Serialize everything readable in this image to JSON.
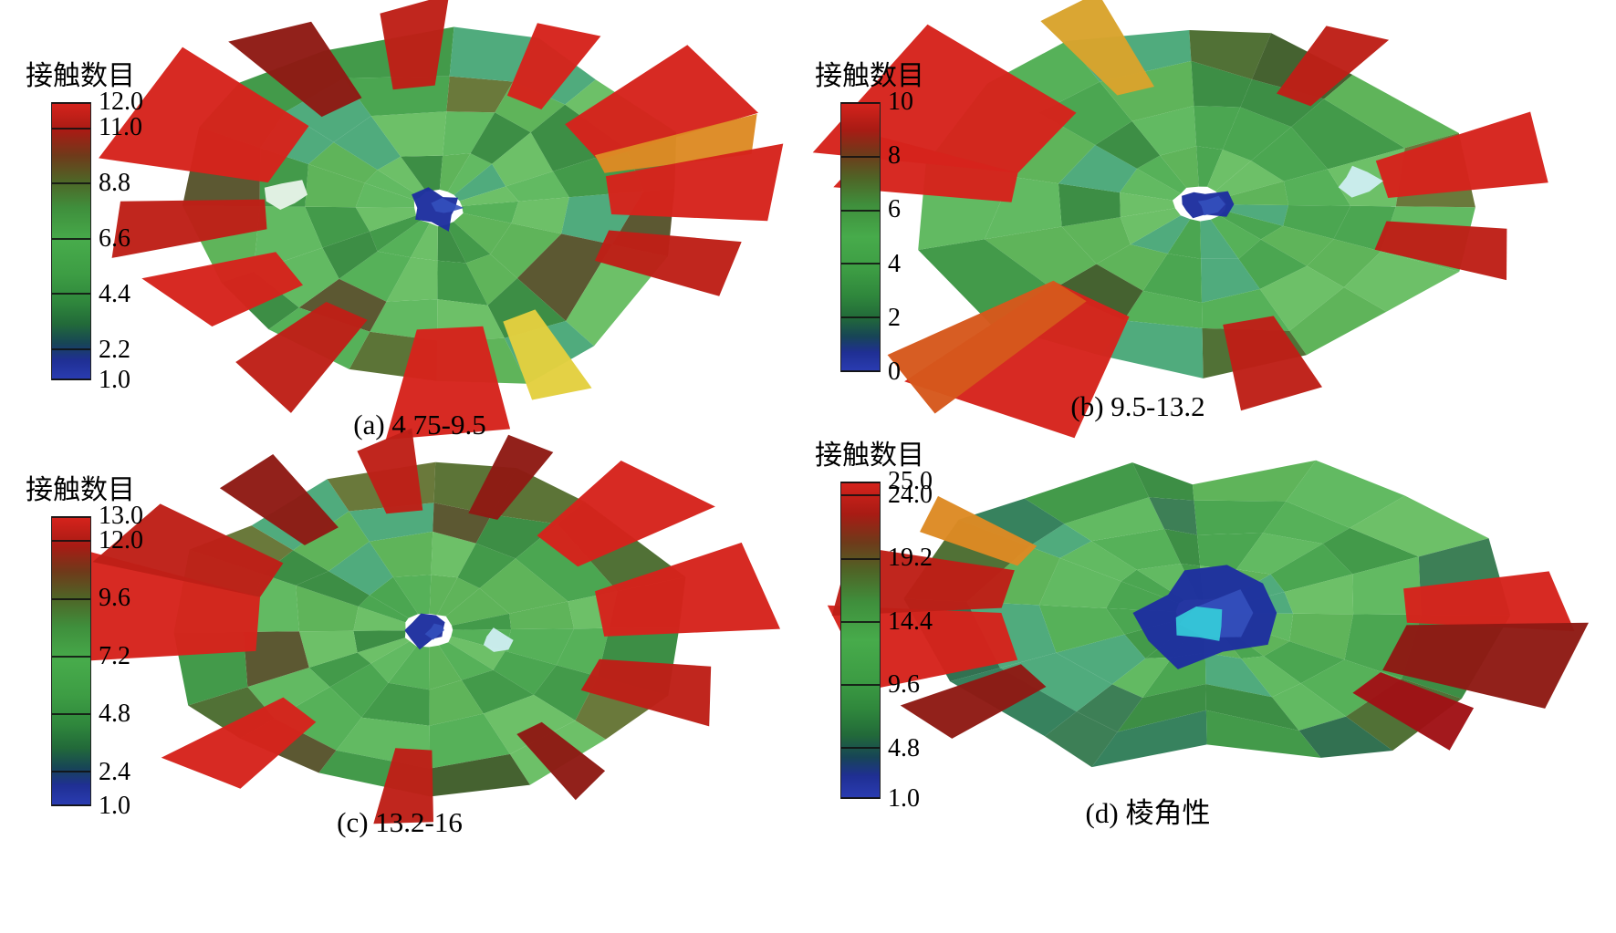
{
  "figure": {
    "background": "#ffffff"
  },
  "colormap": {
    "high_color": "#d6231c",
    "mid_color": "#47ab4b",
    "low_color": "#2a3cb2",
    "gradient_stops": [
      [
        "#d6231c",
        0
      ],
      [
        "#a81b14",
        10
      ],
      [
        "#6f3a1a",
        19
      ],
      [
        "#4f6426",
        28
      ],
      [
        "#3f8f3c",
        38
      ],
      [
        "#47ab4b",
        50
      ],
      [
        "#3d9d44",
        62
      ],
      [
        "#2f873c",
        72
      ],
      [
        "#226a39",
        80
      ],
      [
        "#174556",
        87
      ],
      [
        "#1f2f93",
        93
      ],
      [
        "#2a3cb2",
        100
      ]
    ],
    "blob_palette": {
      "greens": [
        "#4fae52",
        "#44a24a",
        "#5cb75c",
        "#3b9643",
        "#67bd62",
        "#35893d",
        "#58b153",
        "#49a878"
      ],
      "olives": [
        "#4a6b2e",
        "#3d5c28",
        "#556e2f",
        "#647433",
        "#55512a"
      ],
      "teals": [
        "#2f7d57",
        "#2a6b4a",
        "#357a4f",
        "#4a6b2e"
      ],
      "red_bright": "#d6231c",
      "red_mid": "#be1f17",
      "red_dark": "#8e1a14",
      "crimson": "#a01216",
      "yellow": "#e3cf3f",
      "orange": "#dd8a24",
      "tan": "#d9a32c",
      "red_orange": "#d6581c",
      "blue_dark": "#1e2f9f",
      "blue_mid": "#3450bd",
      "cyan": "#35c8d8",
      "light": "#e9f4ea",
      "light_cyan": "#cfeef2"
    }
  },
  "chart_data": [
    {
      "type": "heatmap",
      "caption": "(a) 4.75-9.5",
      "colorbar": {
        "label": "接触数目",
        "tick_labels": [
          "12.0",
          "11.0",
          "8.8",
          "6.6",
          "4.4",
          "2.2",
          "1.0"
        ],
        "range": [
          1.0,
          12.0
        ],
        "orientation": "vertical",
        "position": "left"
      }
    },
    {
      "type": "heatmap",
      "caption": "(b) 9.5-13.2",
      "colorbar": {
        "label": "接触数目",
        "tick_labels": [
          "10",
          "8",
          "6",
          "4",
          "2",
          "0"
        ],
        "range": [
          0,
          10
        ],
        "orientation": "vertical",
        "position": "left"
      }
    },
    {
      "type": "heatmap",
      "caption": "(c) 13.2-16",
      "colorbar": {
        "label": "接触数目",
        "tick_labels": [
          "13.0",
          "12.0",
          "9.6",
          "7.2",
          "4.8",
          "2.4",
          "1.0"
        ],
        "range": [
          1.0,
          13.0
        ],
        "orientation": "vertical",
        "position": "left"
      }
    },
    {
      "type": "heatmap",
      "caption": "(d) 棱角性",
      "colorbar": {
        "label": "接触数目",
        "tick_labels": [
          "25.0",
          "24.0",
          "19.2",
          "14.4",
          "9.6",
          "4.8",
          "1.0"
        ],
        "range": [
          1.0,
          25.0
        ],
        "orientation": "vertical",
        "position": "left"
      }
    }
  ]
}
